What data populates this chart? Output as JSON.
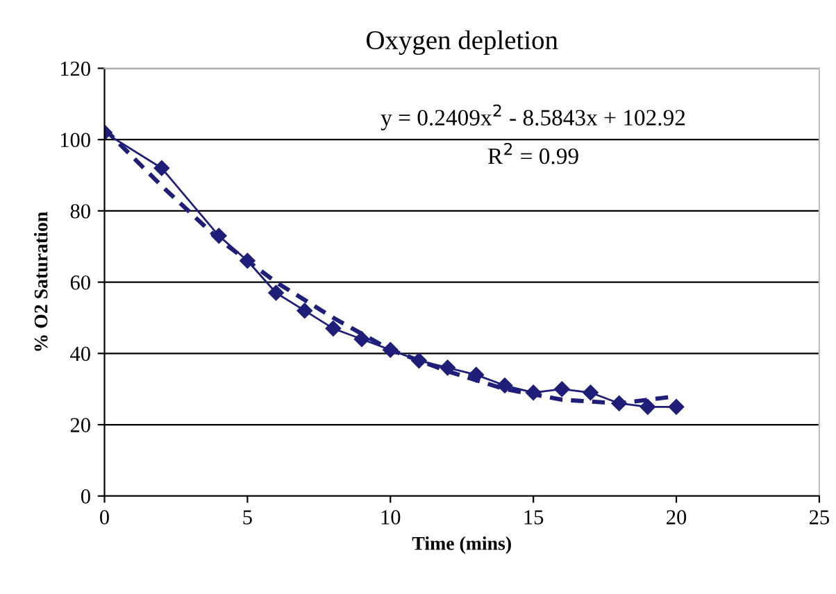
{
  "chart_data": {
    "type": "line",
    "title": "Oxygen depletion",
    "xlabel": "Time (mins)",
    "ylabel": "% O2 Saturation",
    "xlim": [
      0,
      25
    ],
    "xticks": [
      0,
      5,
      10,
      15,
      20,
      25
    ],
    "ylim": [
      0,
      120
    ],
    "yticks": [
      0,
      20,
      40,
      60,
      80,
      100,
      120
    ],
    "grid": "y",
    "legend": false,
    "series": [
      {
        "color": "#1f1f7a",
        "marker": "diamond",
        "line_style": "solid",
        "x": [
          0,
          2,
          4,
          5,
          6,
          7,
          8,
          9,
          10,
          11,
          12,
          13,
          14,
          15,
          16,
          17,
          18,
          19,
          20
        ],
        "values": [
          102,
          92,
          73,
          66,
          57,
          52,
          47,
          44,
          41,
          38,
          36,
          34,
          31,
          29,
          30,
          29,
          26,
          25,
          25
        ]
      },
      {
        "color": "#1f1f7a",
        "marker": "none",
        "line_style": "dashed",
        "x": [
          0,
          2,
          4,
          6,
          8,
          10,
          12,
          14,
          16,
          18,
          20
        ],
        "values": [
          103,
          87,
          72,
          60,
          50,
          41,
          35,
          30,
          27,
          26,
          28
        ]
      }
    ],
    "annotations": [
      "y = 0.2409x$^{2}$ - 8.5843x + 102.92",
      "R$^{2}$ = 0.99"
    ]
  }
}
